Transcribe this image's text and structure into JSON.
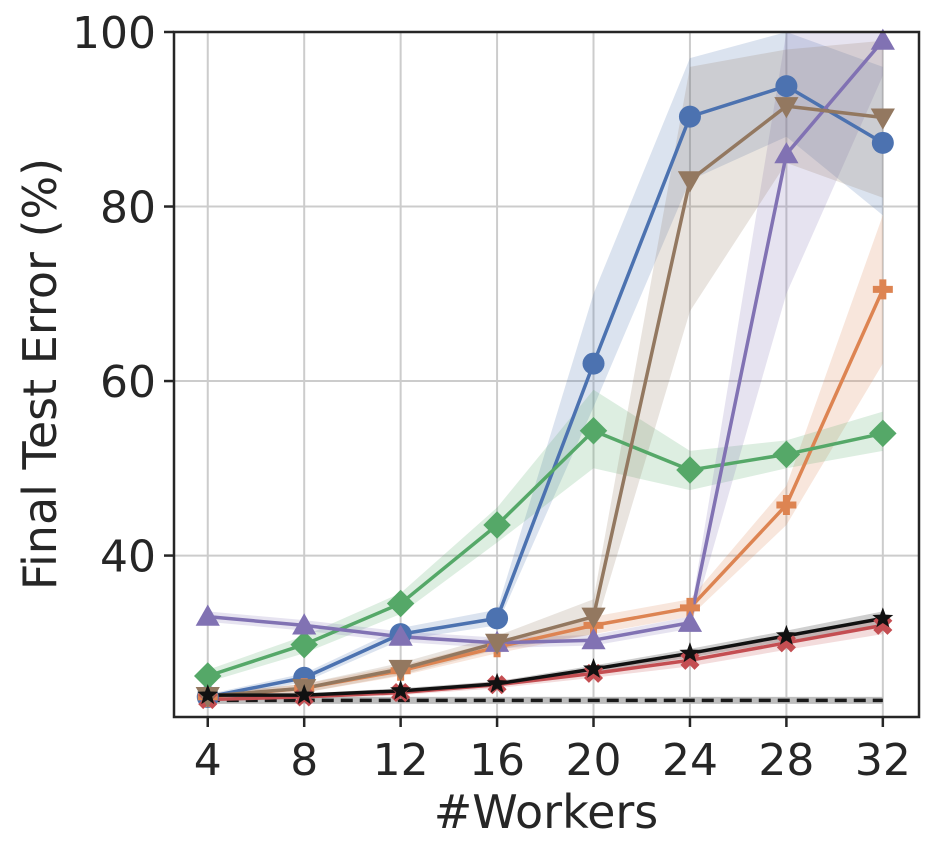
{
  "chart_data": {
    "type": "line",
    "xlabel": "#Workers",
    "ylabel": "Final Test Error (%)",
    "x": [
      4,
      8,
      12,
      16,
      20,
      24,
      28,
      32
    ],
    "xticks": [
      "4",
      "8",
      "12",
      "16",
      "20",
      "24",
      "28",
      "32"
    ],
    "yticks": [
      "40",
      "60",
      "80",
      "100"
    ],
    "xlim": [
      2.6,
      33.5
    ],
    "ylim": [
      21.5,
      100
    ],
    "grid": true,
    "legend": null,
    "baseline": {
      "value": 23.4,
      "style": "dashed",
      "color": "#1a1a1a",
      "band_color": "#bdbdbd"
    },
    "series": [
      {
        "color": "#4c72b0",
        "marker": "circle",
        "values": [
          23.8,
          26.0,
          31.0,
          32.8,
          62.0,
          90.3,
          93.8,
          87.3
        ],
        "lower": [
          23.5,
          25.5,
          30.3,
          32.0,
          57.0,
          83.0,
          88.0,
          79.0
        ],
        "upper": [
          24.1,
          26.5,
          31.7,
          33.8,
          70.0,
          97.0,
          100.0,
          96.0
        ]
      },
      {
        "color": "#dd8452",
        "marker": "plus",
        "values": [
          23.8,
          24.8,
          26.8,
          29.5,
          32.0,
          34.0,
          45.8,
          70.5
        ],
        "lower": [
          23.5,
          24.3,
          26.2,
          28.8,
          31.0,
          33.0,
          43.5,
          62.0
        ],
        "upper": [
          24.1,
          25.3,
          27.4,
          30.2,
          33.0,
          35.0,
          48.0,
          79.0
        ]
      },
      {
        "color": "#55a868",
        "marker": "diamond",
        "values": [
          26.2,
          29.8,
          34.5,
          43.5,
          54.3,
          49.8,
          51.6,
          54.0
        ],
        "lower": [
          25.5,
          28.8,
          33.3,
          41.5,
          50.0,
          47.5,
          50.0,
          52.0
        ],
        "upper": [
          26.9,
          30.8,
          35.7,
          45.5,
          59.0,
          52.0,
          53.2,
          56.5
        ]
      },
      {
        "color": "#c44e52",
        "marker": "x",
        "values": [
          23.5,
          23.8,
          24.3,
          25.2,
          26.5,
          28.0,
          30.0,
          32.0
        ],
        "lower": [
          23.3,
          23.5,
          24.0,
          24.8,
          26.0,
          27.3,
          29.2,
          31.0
        ],
        "upper": [
          23.7,
          24.1,
          24.6,
          25.6,
          27.0,
          28.7,
          30.8,
          33.0
        ]
      },
      {
        "color": "#8172b3",
        "marker": "triangle-up",
        "values": [
          33.0,
          32.0,
          30.7,
          30.0,
          30.3,
          32.3,
          86.0,
          99.0
        ],
        "lower": [
          32.4,
          31.4,
          30.1,
          29.4,
          29.7,
          31.6,
          70.0,
          95.0
        ],
        "upper": [
          33.6,
          32.6,
          31.3,
          30.6,
          30.9,
          33.0,
          100.0,
          100.0
        ]
      },
      {
        "color": "#937860",
        "marker": "triangle-down",
        "values": [
          23.9,
          24.8,
          27.0,
          30.0,
          33.0,
          83.0,
          91.5,
          90.2
        ],
        "lower": [
          23.6,
          24.3,
          26.3,
          29.2,
          31.0,
          68.0,
          85.0,
          81.0
        ],
        "upper": [
          24.2,
          25.3,
          27.7,
          30.8,
          35.0,
          96.0,
          98.0,
          99.0
        ]
      },
      {
        "color": "#111111",
        "marker": "star",
        "values": [
          24.0,
          24.0,
          24.5,
          25.3,
          27.0,
          28.8,
          30.8,
          32.8
        ],
        "lower": [
          23.8,
          23.8,
          24.2,
          25.0,
          26.6,
          28.3,
          30.2,
          32.0
        ],
        "upper": [
          24.2,
          24.2,
          24.8,
          25.6,
          27.4,
          29.3,
          31.4,
          33.6
        ]
      }
    ]
  }
}
